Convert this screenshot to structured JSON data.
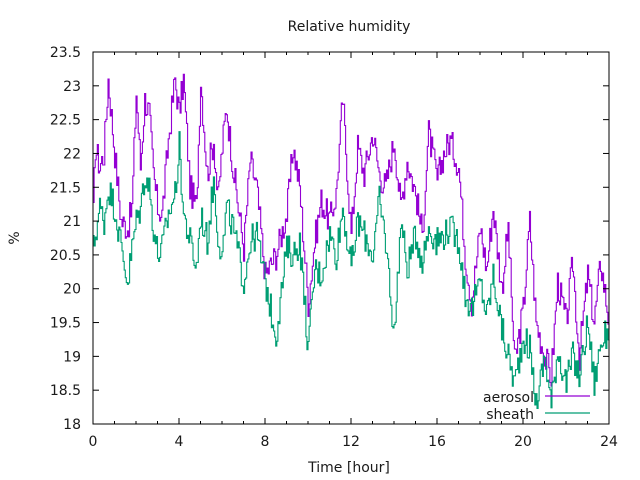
{
  "chart_data": {
    "type": "line",
    "title": "Relative humidity",
    "xlabel": "Time [hour]",
    "ylabel": "%",
    "xlim": [
      0,
      24
    ],
    "ylim": [
      18,
      23.5
    ],
    "x_ticks": [
      0,
      4,
      8,
      12,
      16,
      20,
      24
    ],
    "x_tick_labels": [
      "0",
      "4",
      "8",
      "12",
      "16",
      "20",
      "24"
    ],
    "x_minor_step": 1,
    "y_ticks": [
      18,
      18.5,
      19,
      19.5,
      20,
      20.5,
      21,
      21.5,
      22,
      22.5,
      23,
      23.5
    ],
    "y_tick_labels": [
      "18",
      "18.5",
      "19",
      "19.5",
      "20",
      "20.5",
      "21",
      "21.5",
      "22",
      "22.5",
      "23",
      "23.5"
    ],
    "grid": false,
    "legend_position": "bottom-right",
    "step": "steps",
    "key_x": [
      0,
      0.1,
      0.3,
      0.5,
      0.7,
      1.0,
      1.3,
      1.6,
      1.8,
      2.0,
      2.2,
      2.4,
      2.6,
      2.8,
      3.0,
      3.2,
      3.5,
      3.8,
      4.0,
      4.2,
      4.5,
      4.8,
      5.0,
      5.3,
      5.6,
      5.8,
      6.0,
      6.2,
      6.5,
      7.0,
      7.3,
      7.6,
      8.0,
      8.5,
      9.0,
      9.3,
      9.6,
      10.0,
      10.3,
      10.6,
      11.0,
      11.3,
      11.6,
      12.0,
      12.3,
      12.6,
      13.0,
      13.3,
      13.6,
      14.0,
      14.3,
      14.6,
      15.0,
      15.3,
      15.6,
      16.0,
      16.3,
      16.6,
      17.0,
      17.3,
      17.6,
      18.0,
      18.3,
      18.6,
      19.0,
      19.3,
      19.6,
      20.0,
      20.3,
      20.6,
      21.0,
      21.3,
      21.6,
      22.0,
      22.3,
      22.6,
      23.0,
      23.3,
      23.6,
      24.0
    ],
    "series": [
      {
        "name": "aerosol",
        "color": "#9400d3",
        "values": [
          21.1,
          22.1,
          21.8,
          22.0,
          23.1,
          22.0,
          21.0,
          20.9,
          21.2,
          22.9,
          21.8,
          22.8,
          22.6,
          21.7,
          21.2,
          21.1,
          22.2,
          23.1,
          22.6,
          23.1,
          21.5,
          21.2,
          23.1,
          21.7,
          22.2,
          21.3,
          22.1,
          22.7,
          21.8,
          20.6,
          21.9,
          21.5,
          20.2,
          20.5,
          21.1,
          22.1,
          21.5,
          19.8,
          20.7,
          21.3,
          21.0,
          21.4,
          22.8,
          20.8,
          22.1,
          21.7,
          22.3,
          21.7,
          21.5,
          22.2,
          21.2,
          21.9,
          21.4,
          20.8,
          22.3,
          21.6,
          22.0,
          22.2,
          21.8,
          20.5,
          19.8,
          20.9,
          20.3,
          21.2,
          20.0,
          20.9,
          18.9,
          19.7,
          21.0,
          19.5,
          19.0,
          18.7,
          20.1,
          19.5,
          20.4,
          19.0,
          20.2,
          19.5,
          20.4,
          19.5
        ]
      },
      {
        "name": "sheath",
        "color": "#009e73",
        "values": [
          20.6,
          20.8,
          21.2,
          21.0,
          21.5,
          21.2,
          20.6,
          20.1,
          20.6,
          21.0,
          21.2,
          21.7,
          21.5,
          20.9,
          20.5,
          20.6,
          21.1,
          21.4,
          22.1,
          21.1,
          20.7,
          20.3,
          21.1,
          20.7,
          21.6,
          20.8,
          20.5,
          21.2,
          20.9,
          20.1,
          20.7,
          20.8,
          20.1,
          19.3,
          20.6,
          20.5,
          20.7,
          19.1,
          20.3,
          20.2,
          20.8,
          20.5,
          21.2,
          20.3,
          21.0,
          20.8,
          20.5,
          21.3,
          20.7,
          19.3,
          21.0,
          20.3,
          20.8,
          20.4,
          20.9,
          20.7,
          20.8,
          20.9,
          20.7,
          19.9,
          19.7,
          20.1,
          19.6,
          20.2,
          19.4,
          19.0,
          18.6,
          19.3,
          19.1,
          18.3,
          19.0,
          18.3,
          19.1,
          18.6,
          19.0,
          18.7,
          19.5,
          18.6,
          19.2,
          19.4
        ]
      }
    ]
  }
}
